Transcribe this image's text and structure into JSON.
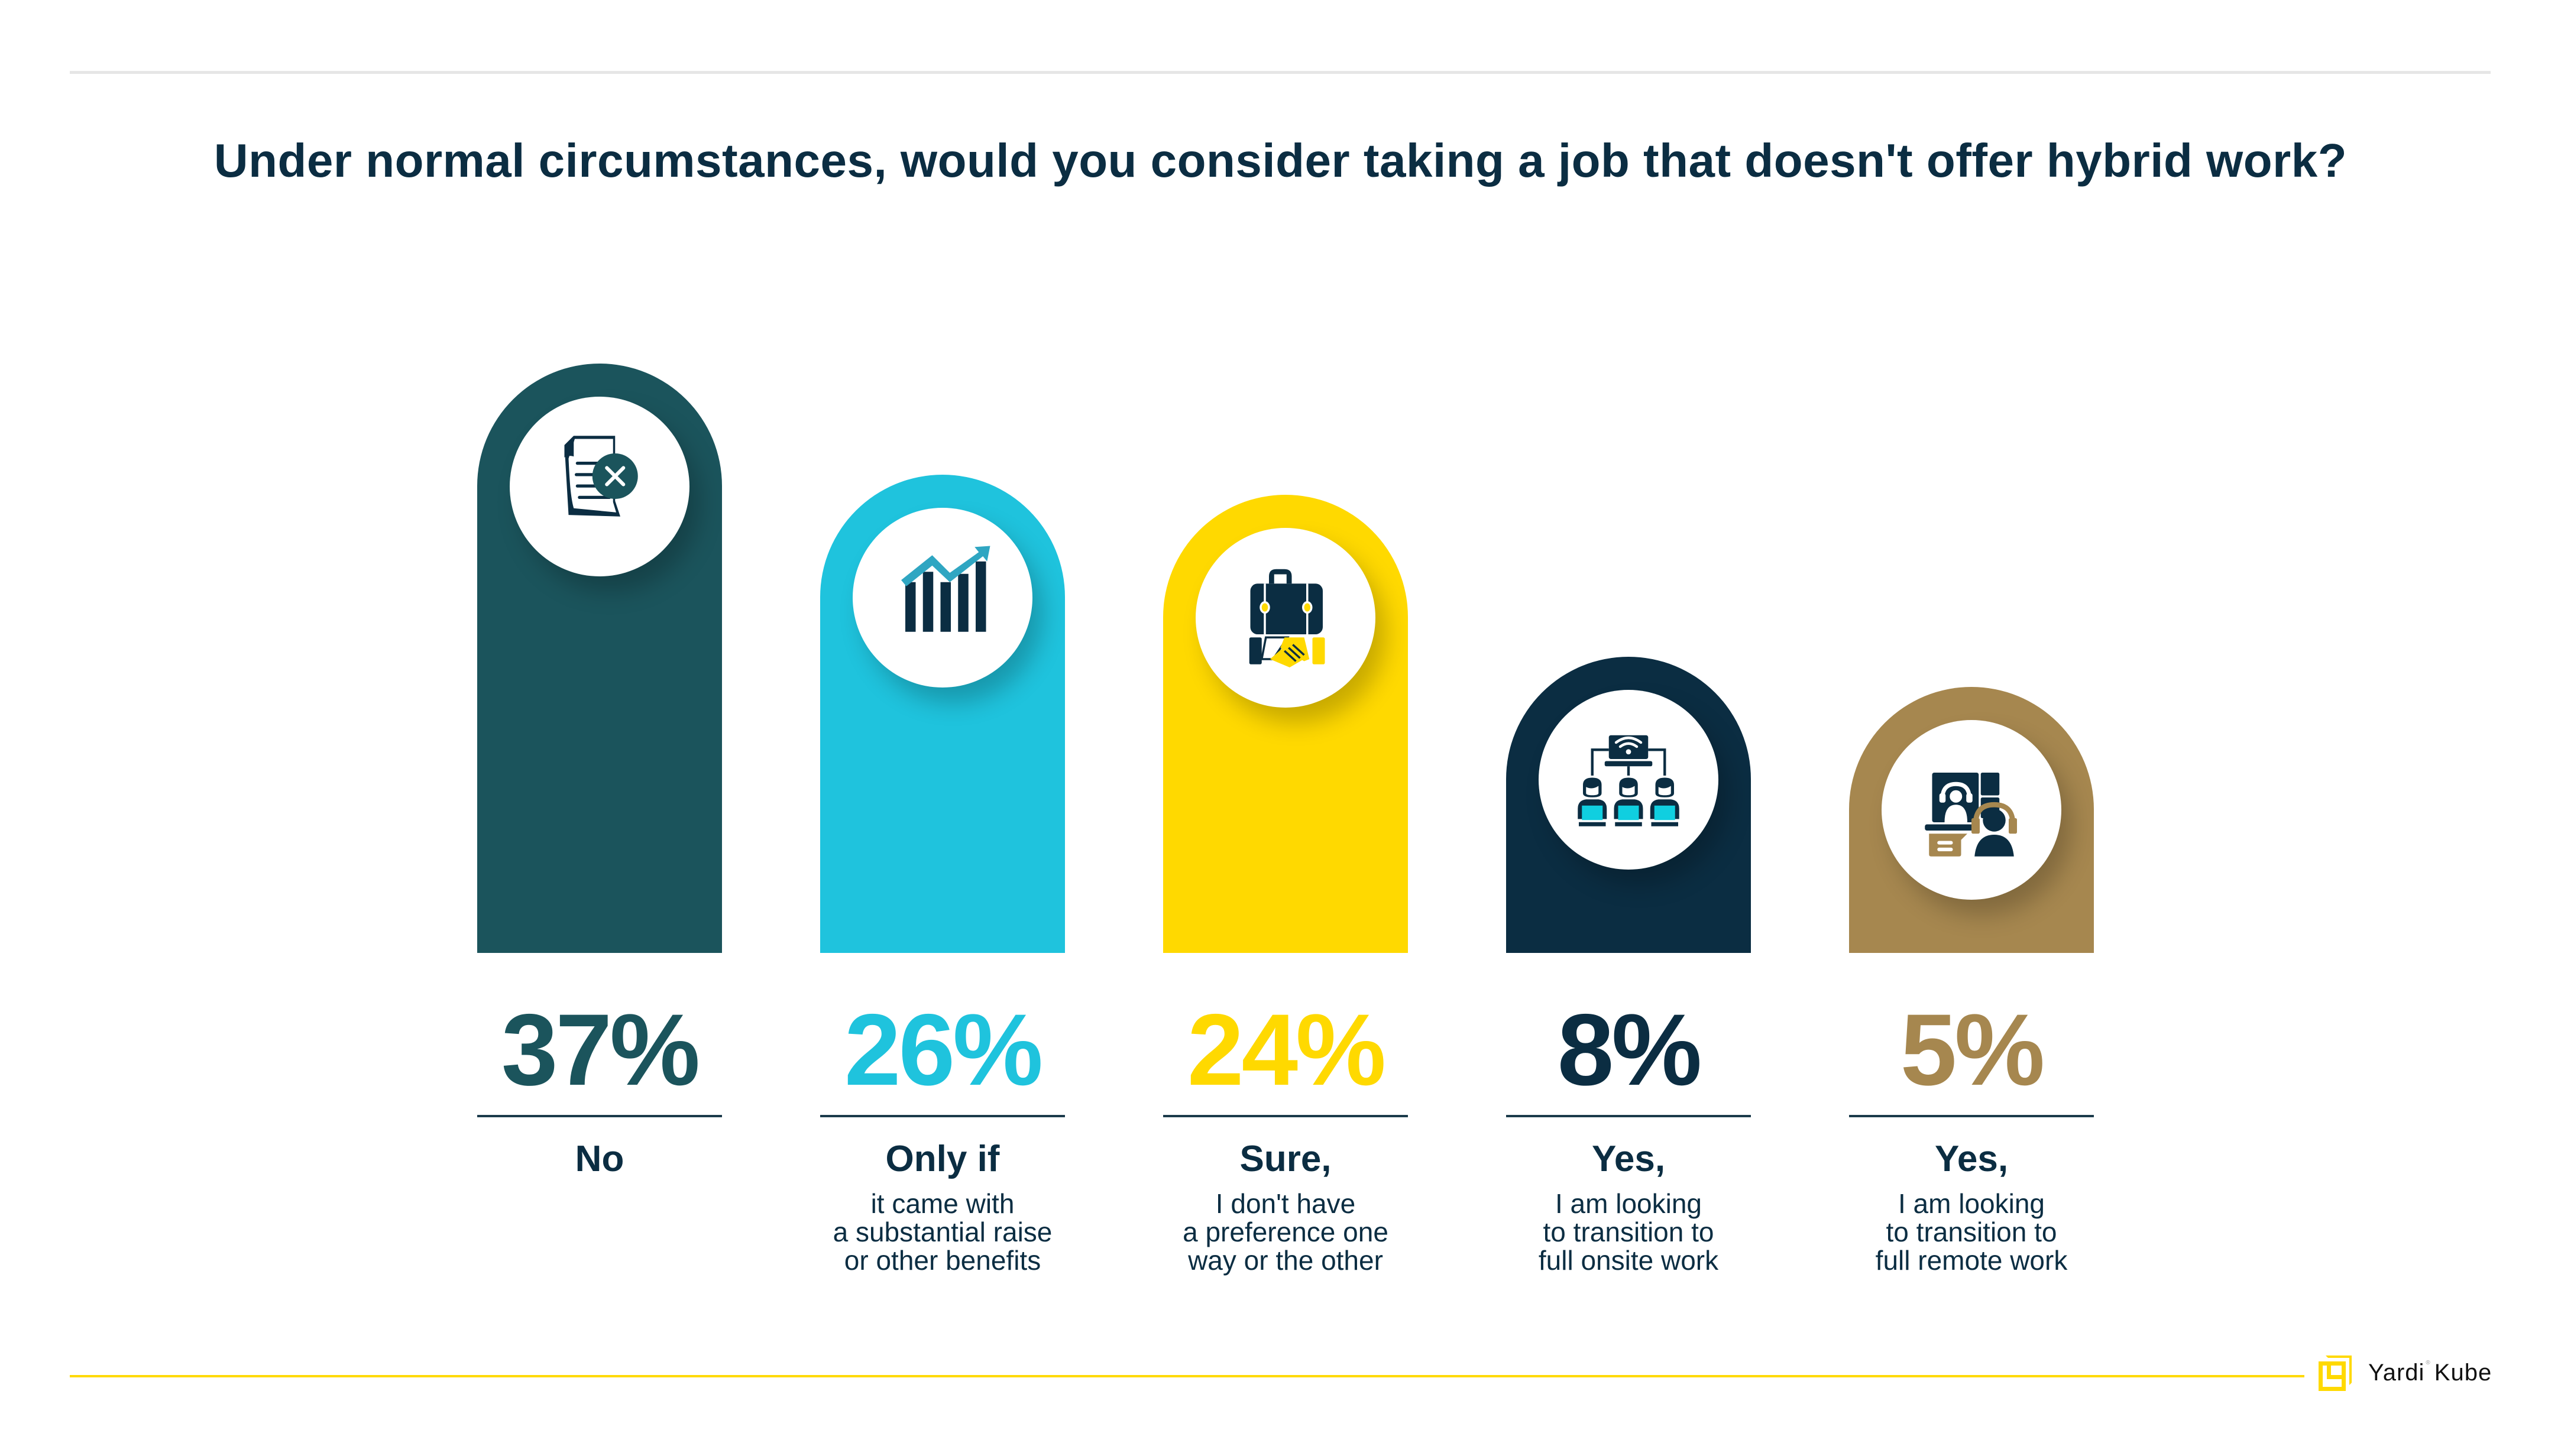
{
  "title": "Under normal circumstances, would you consider taking a job that doesn't offer hybrid work?",
  "brand": {
    "name_part1": "Yardi",
    "registered": "®",
    "name_part2": "Kube",
    "accent": "#FFD900"
  },
  "colors": {
    "text": "#0B2D42",
    "divider": "#1B3A4B",
    "top_rule": "#E6E6E6",
    "footer_rule": "#FFD900"
  },
  "chart_data": {
    "type": "bar",
    "title": "Under normal circumstances, would you consider taking a job that doesn't offer hybrid work?",
    "xlabel": "",
    "ylabel": "",
    "ylim": [
      0,
      37
    ],
    "grid": false,
    "legend": "none",
    "unit": "%",
    "categories": [
      "No",
      "Only if it came with a substantial raise or other benefits",
      "Sure, I don't have a preference one way or the other",
      "Yes, I am looking to transition to full onsite work",
      "Yes, I am looking to transition to full remote work"
    ],
    "values": [
      37,
      26,
      24,
      8,
      5
    ],
    "bars": [
      {
        "value": 37,
        "value_label": "37%",
        "lead": "No",
        "desc": [],
        "color": "#1B545C",
        "icon": "document-cancel-icon"
      },
      {
        "value": 26,
        "value_label": "26%",
        "lead": "Only if",
        "desc": [
          "it came with",
          "a substantial raise",
          "or other benefits"
        ],
        "color": "#1FC3DD",
        "icon": "growth-chart-icon"
      },
      {
        "value": 24,
        "value_label": "24%",
        "lead": "Sure,",
        "desc": [
          "I don't have",
          "a preference one",
          "way or the other"
        ],
        "color": "#FFD900",
        "icon": "briefcase-handshake-icon"
      },
      {
        "value": 8,
        "value_label": "8%",
        "lead": "Yes,",
        "desc": [
          "I am looking",
          "to transition to",
          "full onsite work"
        ],
        "color": "#0B2D42",
        "icon": "onsite-team-icon"
      },
      {
        "value": 5,
        "value_label": "5%",
        "lead": "Yes,",
        "desc": [
          "I am looking",
          "to transition to",
          "full remote work"
        ],
        "color": "#A6874F",
        "icon": "remote-call-icon"
      }
    ]
  }
}
